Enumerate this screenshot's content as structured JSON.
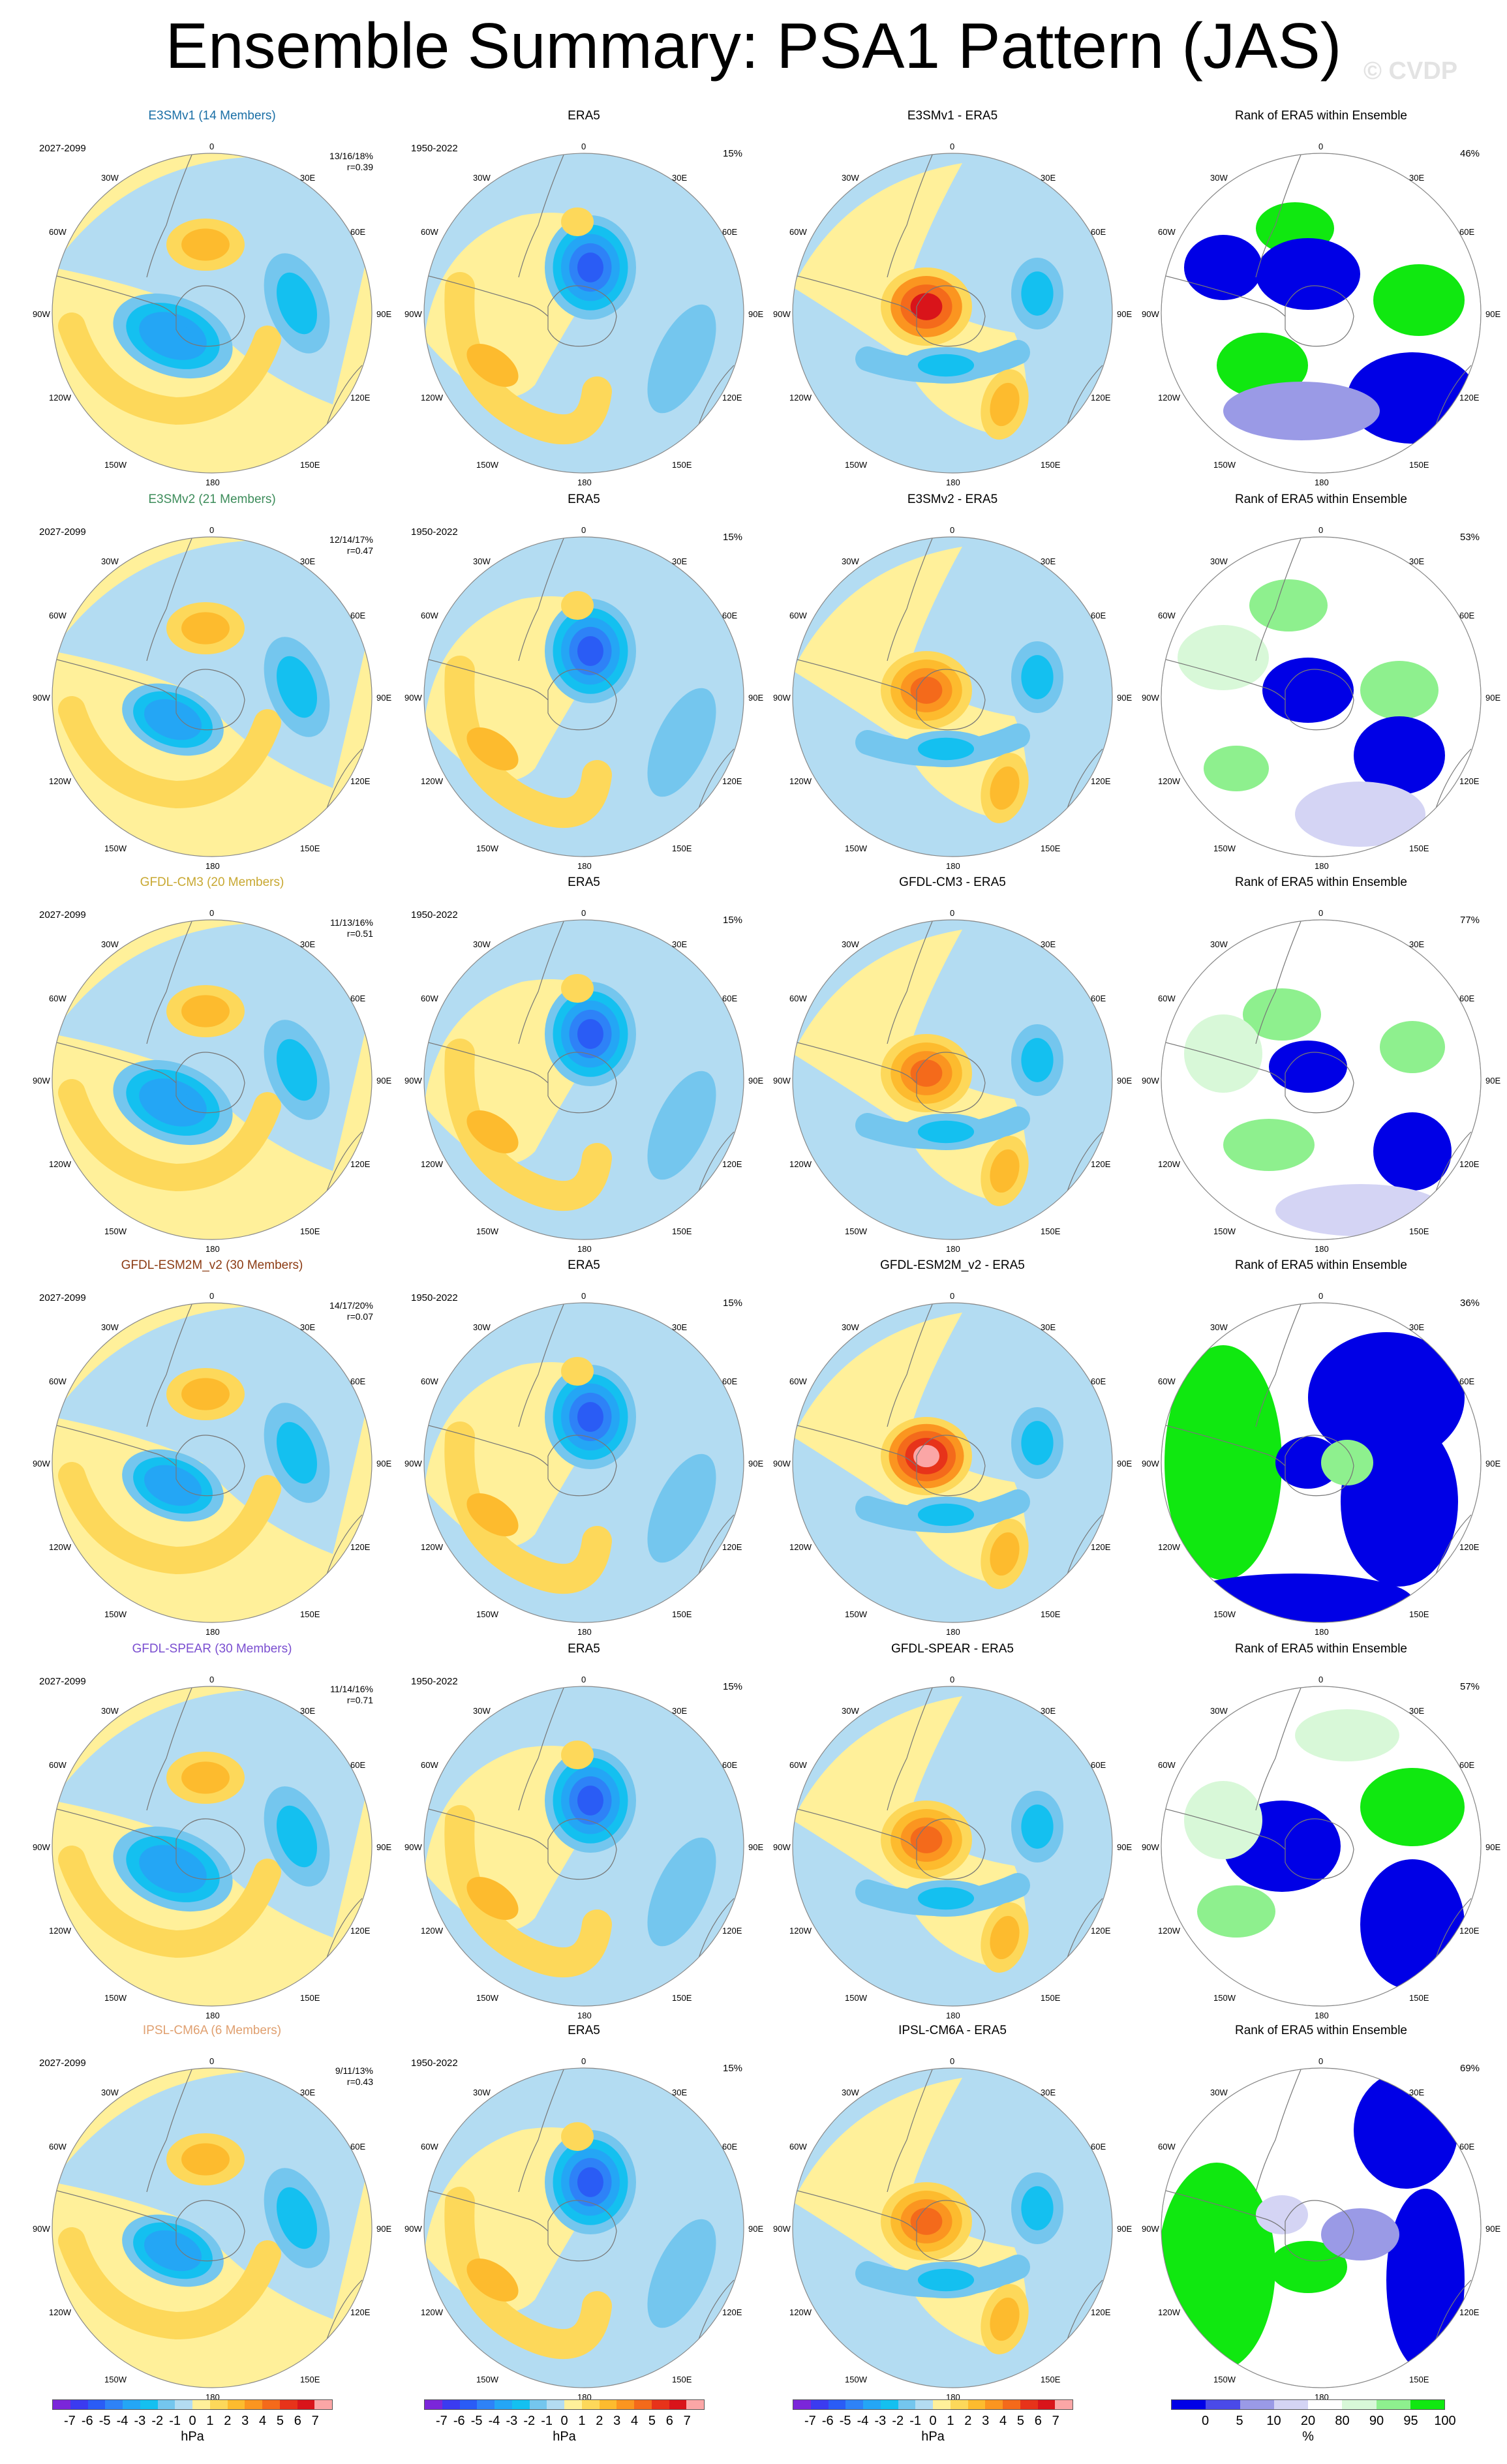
{
  "title": "Ensemble Summary: PSA1 Pattern (JAS)",
  "watermark": "© CVDP",
  "rows": [
    {
      "model": "E3SMv1 (14 Members)",
      "model_color": "#1a6fa6",
      "period": "2027-2099",
      "stats": "13/16/18%",
      "corr": "r=0.39",
      "diff_title": "E3SMv1 - ERA5",
      "rank_pct": "46%"
    },
    {
      "model": "E3SMv2 (21 Members)",
      "model_color": "#3c8c5a",
      "period": "2027-2099",
      "stats": "12/14/17%",
      "corr": "r=0.47",
      "diff_title": "E3SMv2 - ERA5",
      "rank_pct": "53%"
    },
    {
      "model": "GFDL-CM3 (20 Members)",
      "model_color": "#c8a832",
      "period": "2027-2099",
      "stats": "11/13/16%",
      "corr": "r=0.51",
      "diff_title": "GFDL-CM3 - ERA5",
      "rank_pct": "77%"
    },
    {
      "model": "GFDL-ESM2M_v2 (30 Members)",
      "model_color": "#8c3c14",
      "period": "2027-2099",
      "stats": "14/17/20%",
      "corr": "r=0.07",
      "diff_title": "GFDL-ESM2M_v2 - ERA5",
      "rank_pct": "36%"
    },
    {
      "model": "GFDL-SPEAR (30 Members)",
      "model_color": "#7a4ed0",
      "period": "2027-2099",
      "stats": "11/14/16%",
      "corr": "r=0.71",
      "diff_title": "GFDL-SPEAR - ERA5",
      "rank_pct": "57%"
    },
    {
      "model": "IPSL-CM6A (6 Members)",
      "model_color": "#e0a070",
      "period": "2027-2099",
      "stats": "9/11/13%",
      "corr": "r=0.43",
      "diff_title": "IPSL-CM6A - ERA5",
      "rank_pct": "69%"
    }
  ],
  "era5": {
    "title": "ERA5",
    "period": "1950-2022",
    "pct": "15%"
  },
  "rank_title": "Rank of ERA5 within Ensemble",
  "lon_labels": {
    "n": "0",
    "ne": "30E",
    "e1": "60E",
    "e": "90E",
    "e2": "120E",
    "se": "150E",
    "s": "180",
    "sw": "150W",
    "w2": "120W",
    "w": "90W",
    "w1": "60W",
    "nw": "30W"
  },
  "colorbar_hpa": {
    "ticks": [
      "-7",
      "-6",
      "-5",
      "-4",
      "-3",
      "-2",
      "-1",
      "0",
      "1",
      "2",
      "3",
      "4",
      "5",
      "6",
      "7"
    ],
    "unit": "hPa",
    "colors": [
      "#7b26d9",
      "#3b3bf0",
      "#2a5cf5",
      "#2e82f7",
      "#24a6f5",
      "#14c0f0",
      "#74c6ee",
      "#b3dcf2",
      "#fff09a",
      "#fdd85a",
      "#fdbb2e",
      "#fb9520",
      "#f46a1b",
      "#e7331a",
      "#d9141a",
      "#fba6a6"
    ]
  },
  "colorbar_rank": {
    "ticks": [
      "0",
      "5",
      "10",
      "20",
      "80",
      "90",
      "95",
      "100"
    ],
    "unit": "%",
    "colors": [
      "#0000e6",
      "#4a4ae8",
      "#9a9ae6",
      "#d4d4f4",
      "#ffffff",
      "#d8f8d8",
      "#8ef08e",
      "#10e810"
    ]
  }
}
